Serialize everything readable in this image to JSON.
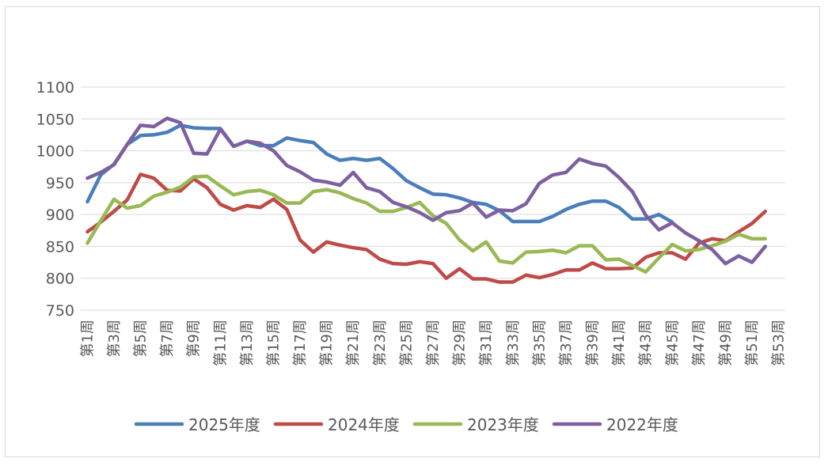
{
  "chart_data": {
    "type": "line",
    "title": "",
    "xlabel": "",
    "ylabel": "",
    "ylim": [
      750,
      1100
    ],
    "yticks": [
      750,
      800,
      850,
      900,
      950,
      1000,
      1050,
      1100
    ],
    "grid": true,
    "legend_position": "bottom",
    "x_tick_labels": [
      "第1周",
      "第3周",
      "第5周",
      "第7周",
      "第9周",
      "第11周",
      "第13周",
      "第15周",
      "第17周",
      "第19周",
      "第21周",
      "第23周",
      "第25周",
      "第27周",
      "第29周",
      "第31周",
      "第33周",
      "第35周",
      "第37周",
      "第39周",
      "第41周",
      "第43周",
      "第45周",
      "第47周",
      "第49周",
      "第51周",
      "第53周"
    ],
    "series": [
      {
        "name": "2025年度",
        "color": "#4a7ebb",
        "values": [
          920,
          962,
          979,
          1010,
          1024,
          1025,
          1029,
          1040,
          1036,
          1035,
          1035,
          1007,
          1015,
          1008,
          1008,
          1020,
          1016,
          1013,
          995,
          985,
          988,
          985,
          988,
          972,
          953,
          942,
          932,
          931,
          926,
          919,
          916,
          906,
          889,
          889,
          889,
          897,
          908,
          916,
          921,
          921,
          911,
          893,
          893,
          900,
          888,
          null,
          null,
          null,
          null,
          null,
          null,
          null,
          null
        ]
      },
      {
        "name": "2024年度",
        "color": "#be4b48",
        "values": [
          873,
          888,
          905,
          923,
          963,
          957,
          938,
          937,
          956,
          942,
          916,
          907,
          914,
          911,
          924,
          908,
          860,
          841,
          857,
          852,
          848,
          845,
          830,
          823,
          822,
          826,
          823,
          800,
          815,
          799,
          799,
          794,
          794,
          805,
          801,
          806,
          813,
          813,
          824,
          815,
          815,
          816,
          833,
          840,
          840,
          830,
          855,
          862,
          859,
          873,
          886,
          905,
          null
        ]
      },
      {
        "name": "2023年度",
        "color": "#98b954",
        "values": [
          855,
          890,
          924,
          910,
          914,
          929,
          935,
          943,
          959,
          960,
          945,
          931,
          936,
          938,
          931,
          918,
          918,
          936,
          939,
          934,
          925,
          918,
          905,
          905,
          911,
          919,
          898,
          886,
          860,
          843,
          857,
          827,
          824,
          841,
          842,
          844,
          840,
          851,
          851,
          829,
          830,
          820,
          810,
          832,
          853,
          843,
          845,
          851,
          858,
          869,
          862,
          862,
          null
        ]
      },
      {
        "name": "2022年度",
        "color": "#7d60a0",
        "values": [
          957,
          966,
          978,
          1010,
          1040,
          1038,
          1051,
          1044,
          996,
          995,
          1034,
          1007,
          1015,
          1012,
          1000,
          977,
          967,
          954,
          951,
          946,
          966,
          942,
          936,
          919,
          912,
          903,
          891,
          903,
          906,
          918,
          896,
          907,
          906,
          917,
          949,
          962,
          966,
          987,
          980,
          976,
          958,
          936,
          899,
          876,
          887,
          871,
          859,
          845,
          823,
          835,
          825,
          850,
          null
        ]
      }
    ]
  }
}
